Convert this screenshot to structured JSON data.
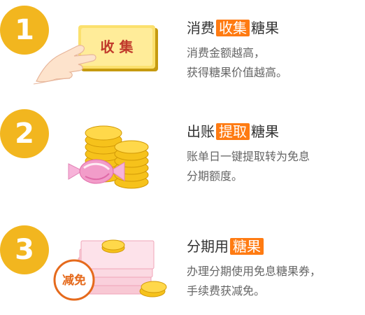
{
  "steps": [
    {
      "number": "1",
      "title_before": "消费",
      "title_highlight": "收集",
      "title_after": "糖果",
      "desc_line1": "消费金额越高，",
      "desc_line2": "获得糖果价值越高。",
      "art_label": "收 集",
      "icon": "hand-pointing-card-icon"
    },
    {
      "number": "2",
      "title_before": "出账",
      "title_highlight": "提取",
      "title_after": "糖果",
      "desc_line1": "账单日一键提取转为免息",
      "desc_line2": "分期额度。",
      "icon": "coins-candy-icon"
    },
    {
      "number": "3",
      "title_before": "分期用",
      "title_highlight": "糖果",
      "title_after": "",
      "desc_line1": "办理分期使用免息糖果券，",
      "desc_line2": "手续费获减免。",
      "art_label": "减免",
      "icon": "coupons-coins-stamp-icon"
    }
  ],
  "colors": {
    "badge": "#f2b61f",
    "highlight": "#ff7b12",
    "title": "#333333",
    "desc": "#666666"
  }
}
